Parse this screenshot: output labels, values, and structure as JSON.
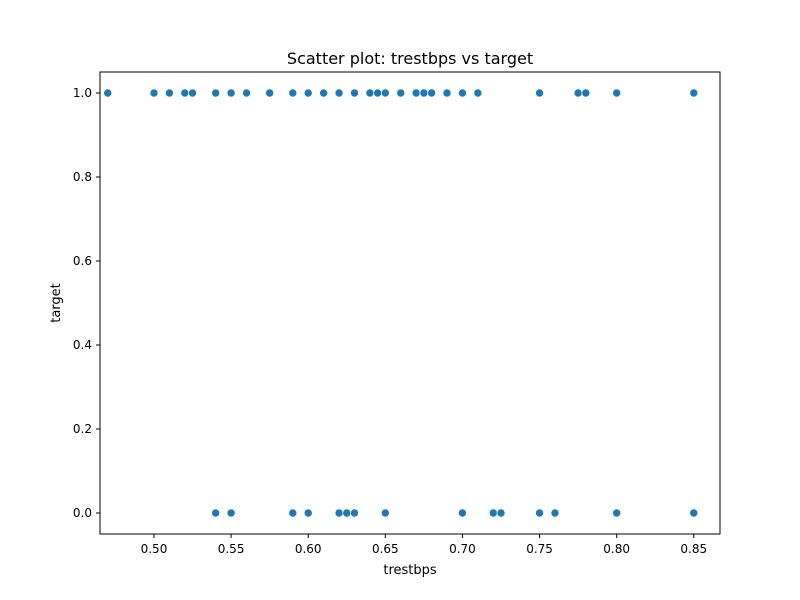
{
  "chart_data": {
    "type": "scatter",
    "title": "Scatter plot: trestbps vs target",
    "xlabel": "trestbps",
    "ylabel": "target",
    "xlim": [
      0.465,
      0.867
    ],
    "ylim": [
      -0.05,
      1.05
    ],
    "x_ticks": [
      "0.50",
      "0.55",
      "0.60",
      "0.65",
      "0.70",
      "0.75",
      "0.80",
      "0.85"
    ],
    "x_tick_values": [
      0.5,
      0.55,
      0.6,
      0.65,
      0.7,
      0.75,
      0.8,
      0.85
    ],
    "y_ticks": [
      "0.0",
      "0.2",
      "0.4",
      "0.6",
      "0.8",
      "1.0"
    ],
    "y_tick_values": [
      0.0,
      0.2,
      0.4,
      0.6,
      0.8,
      1.0
    ],
    "grid": false,
    "marker_color": "#1f77b4",
    "series": [
      {
        "points": [
          {
            "x": 0.47,
            "y": 1
          },
          {
            "x": 0.5,
            "y": 1
          },
          {
            "x": 0.51,
            "y": 1
          },
          {
            "x": 0.52,
            "y": 1
          },
          {
            "x": 0.525,
            "y": 1
          },
          {
            "x": 0.54,
            "y": 1
          },
          {
            "x": 0.55,
            "y": 1
          },
          {
            "x": 0.56,
            "y": 1
          },
          {
            "x": 0.575,
            "y": 1
          },
          {
            "x": 0.59,
            "y": 1
          },
          {
            "x": 0.6,
            "y": 1
          },
          {
            "x": 0.61,
            "y": 1
          },
          {
            "x": 0.62,
            "y": 1
          },
          {
            "x": 0.63,
            "y": 1
          },
          {
            "x": 0.64,
            "y": 1
          },
          {
            "x": 0.645,
            "y": 1
          },
          {
            "x": 0.65,
            "y": 1
          },
          {
            "x": 0.66,
            "y": 1
          },
          {
            "x": 0.67,
            "y": 1
          },
          {
            "x": 0.675,
            "y": 1
          },
          {
            "x": 0.68,
            "y": 1
          },
          {
            "x": 0.69,
            "y": 1
          },
          {
            "x": 0.7,
            "y": 1
          },
          {
            "x": 0.71,
            "y": 1
          },
          {
            "x": 0.75,
            "y": 1
          },
          {
            "x": 0.775,
            "y": 1
          },
          {
            "x": 0.78,
            "y": 1
          },
          {
            "x": 0.8,
            "y": 1
          },
          {
            "x": 0.85,
            "y": 1
          },
          {
            "x": 0.54,
            "y": 0
          },
          {
            "x": 0.55,
            "y": 0
          },
          {
            "x": 0.59,
            "y": 0
          },
          {
            "x": 0.6,
            "y": 0
          },
          {
            "x": 0.62,
            "y": 0
          },
          {
            "x": 0.625,
            "y": 0
          },
          {
            "x": 0.63,
            "y": 0
          },
          {
            "x": 0.65,
            "y": 0
          },
          {
            "x": 0.7,
            "y": 0
          },
          {
            "x": 0.72,
            "y": 0
          },
          {
            "x": 0.725,
            "y": 0
          },
          {
            "x": 0.75,
            "y": 0
          },
          {
            "x": 0.76,
            "y": 0
          },
          {
            "x": 0.8,
            "y": 0
          },
          {
            "x": 0.85,
            "y": 0
          }
        ]
      }
    ]
  }
}
